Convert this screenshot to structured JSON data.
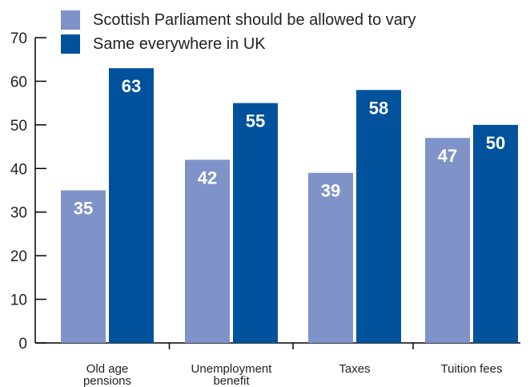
{
  "colors": {
    "series1": "#7f93c9",
    "series2": "#00529c",
    "axis": "#000000",
    "text": "#222222",
    "value_label": "#ffffff"
  },
  "chart_data": {
    "type": "bar",
    "categories": [
      [
        "Old age",
        "pensions"
      ],
      [
        "Unemployment",
        "benefit"
      ],
      [
        "Taxes"
      ],
      [
        "Tuition fees"
      ]
    ],
    "series": [
      {
        "name": "Scottish Parliament should be allowed to vary",
        "values": [
          35,
          42,
          39,
          47
        ]
      },
      {
        "name": "Same everywhere in UK",
        "values": [
          63,
          55,
          58,
          50
        ]
      }
    ],
    "ylim": [
      0,
      70
    ],
    "yticks": [
      0,
      10,
      20,
      30,
      40,
      50,
      60,
      70
    ],
    "data_labels": true,
    "legend_position": "top-left",
    "grid": false
  }
}
